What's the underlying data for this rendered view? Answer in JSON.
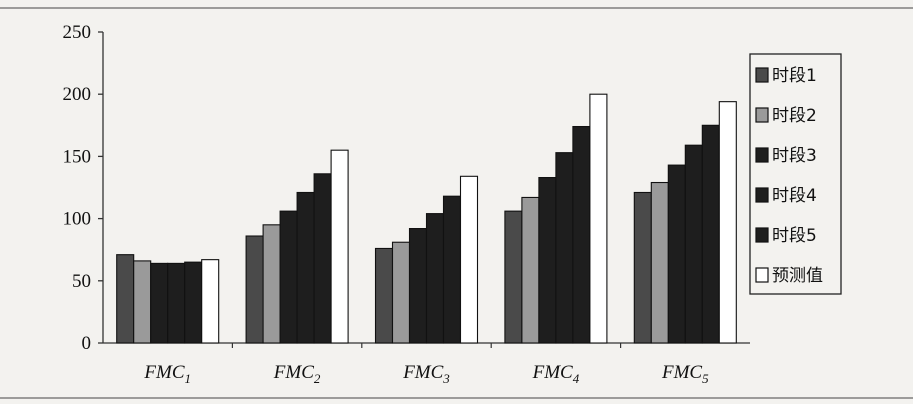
{
  "chart_data": {
    "type": "bar",
    "categories": [
      "FMC1",
      "FMC2",
      "FMC3",
      "FMC4",
      "FMC5"
    ],
    "category_labels": [
      {
        "main": "FMC",
        "sub": "1"
      },
      {
        "main": "FMC",
        "sub": "2"
      },
      {
        "main": "FMC",
        "sub": "3"
      },
      {
        "main": "FMC",
        "sub": "4"
      },
      {
        "main": "FMC",
        "sub": "5"
      }
    ],
    "series": [
      {
        "name": "时段1",
        "color": "#4a4a4a",
        "values": [
          71,
          86,
          76,
          106,
          121
        ]
      },
      {
        "name": "时段2",
        "color": "#9a9a9a",
        "values": [
          66,
          95,
          81,
          117,
          129
        ]
      },
      {
        "name": "时段3",
        "color": "#1e1e1e",
        "values": [
          64,
          106,
          92,
          133,
          143
        ]
      },
      {
        "name": "时段4",
        "color": "#1e1e1e",
        "values": [
          64,
          121,
          104,
          153,
          159
        ]
      },
      {
        "name": "时段5",
        "color": "#1e1e1e",
        "values": [
          65,
          136,
          118,
          174,
          175
        ]
      },
      {
        "name": "预测值",
        "color": "#ffffff",
        "values": [
          67,
          155,
          134,
          200,
          194
        ]
      }
    ],
    "y_ticks": [
      "0",
      "50",
      "100",
      "150",
      "200",
      "250"
    ],
    "ylim": [
      0,
      250
    ],
    "title": "",
    "xlabel": "",
    "ylabel": "",
    "grid": false,
    "legend_position": "right"
  }
}
